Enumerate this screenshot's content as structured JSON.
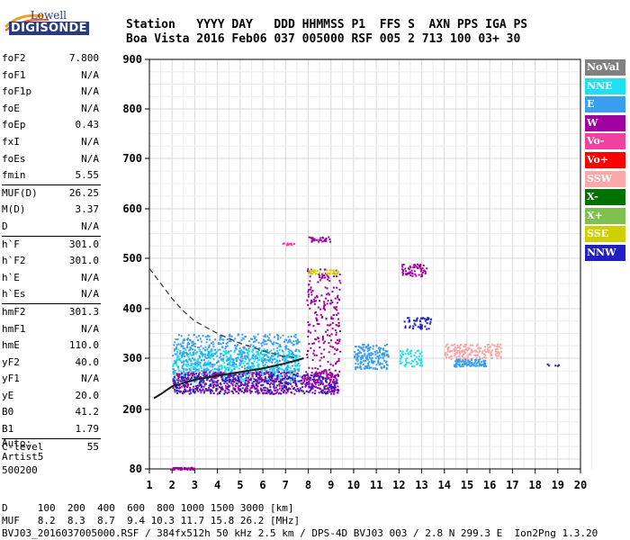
{
  "logo": {
    "top": "Lowell",
    "bottom": "DIGISONDE"
  },
  "header": {
    "row1": "Station   YYYY DAY   DDD HHMMSS P1  FFS S  AXN PPS IGA PS",
    "row2": "Boa Vista 2016 Feb06 037 005000 RSF 005 2 713 100 03+ 30"
  },
  "params": [
    [
      [
        "foF2",
        "7.800"
      ],
      [
        "foF1",
        "N/A"
      ],
      [
        "foF1p",
        "N/A"
      ],
      [
        "foE",
        "N/A"
      ],
      [
        "foEp",
        "0.43"
      ],
      [
        "fxI",
        "N/A"
      ],
      [
        "foEs",
        "N/A"
      ],
      [
        "fmin",
        "5.55"
      ]
    ],
    [
      [
        "MUF(D)",
        "26.25"
      ],
      [
        "M(D)",
        "3.37"
      ],
      [
        "D",
        "N/A"
      ]
    ],
    [
      [
        "h`F",
        "301.0"
      ],
      [
        "h`F2",
        "301.0"
      ],
      [
        "h`E",
        "N/A"
      ],
      [
        "h`Es",
        "N/A"
      ]
    ],
    [
      [
        "hmF2",
        "301.3"
      ],
      [
        "hmF1",
        "N/A"
      ],
      [
        "hmE",
        "110.0"
      ],
      [
        "yF2",
        "40.0"
      ],
      [
        "yF1",
        "N/A"
      ],
      [
        "yE",
        "20.0"
      ],
      [
        "B0",
        "41.2"
      ],
      [
        "B1",
        "1.79"
      ]
    ],
    [
      [
        "C-level",
        "55"
      ]
    ]
  ],
  "auto": {
    "line1": "Auto:",
    "line2": "Artist5",
    "line3": "500200"
  },
  "legend": [
    {
      "label": "NoVal",
      "color": "#808080"
    },
    {
      "label": "NNE",
      "color": "#1ee0f0"
    },
    {
      "label": "E",
      "color": "#3a9ef0"
    },
    {
      "label": "W",
      "color": "#a000a0"
    },
    {
      "label": "Vo-",
      "color": "#f040a0"
    },
    {
      "label": "Vo+",
      "color": "#ff0000"
    },
    {
      "label": "SSW",
      "color": "#f8a8a8"
    },
    {
      "label": "X-",
      "color": "#007000"
    },
    {
      "label": "X+",
      "color": "#80c050"
    },
    {
      "label": "SSE",
      "color": "#d0d000"
    },
    {
      "label": "NNW",
      "color": "#2020c0"
    }
  ],
  "footer": {
    "line1": "D     100  200  400  600  800 1000 1500 3000 [km]",
    "line2": "MUF   8.2  8.3  8.7  9.4 10.3 11.7 15.8 26.2 [MHz]",
    "line3": "BVJ03_2016037005000.RSF / 384fx512h 50 kHz 2.5 km / DPS-4D BVJ03 003 / 2.8 N 299.3 E  Ion2Png 1.3.20"
  },
  "chart_data": {
    "type": "scatter",
    "xlim": [
      1,
      20
    ],
    "ylim": [
      80,
      900
    ],
    "x_ticks": [
      1,
      2,
      3,
      4,
      5,
      6,
      7,
      8,
      9,
      10,
      11,
      12,
      13,
      14,
      15,
      16,
      17,
      18,
      19,
      20
    ],
    "y_ticks": [
      80,
      200,
      300,
      400,
      500,
      600,
      700,
      800,
      900
    ],
    "grid": true,
    "profile_curve": {
      "x": [
        1.0,
        1.5,
        2.0,
        2.5,
        3.0,
        4.0,
        5.0,
        6.0,
        6.8,
        7.4
      ],
      "y": [
        480,
        450,
        420,
        395,
        375,
        350,
        330,
        315,
        305,
        301
      ]
    },
    "trace_curve": {
      "x": [
        1.2,
        1.5,
        2.0,
        3.0,
        4.0,
        5.0,
        6.0,
        7.0,
        7.5,
        7.8
      ],
      "y": [
        222,
        230,
        245,
        258,
        266,
        273,
        280,
        290,
        296,
        300
      ]
    },
    "echo_clusters": [
      {
        "color": "#1ee0f0",
        "x": [
          2.0,
          7.6
        ],
        "y": [
          255,
          320
        ],
        "n": 700
      },
      {
        "color": "#3a9ef0",
        "x": [
          2.0,
          7.6
        ],
        "y": [
          270,
          350
        ],
        "n": 500
      },
      {
        "color": "#a000a0",
        "x": [
          2.0,
          9.3
        ],
        "y": [
          232,
          275
        ],
        "n": 600
      },
      {
        "color": "#2020c0",
        "x": [
          2.0,
          9.3
        ],
        "y": [
          232,
          270
        ],
        "n": 300
      },
      {
        "color": "#3a9ef0",
        "x": [
          10.0,
          11.5
        ],
        "y": [
          280,
          330
        ],
        "n": 180
      },
      {
        "color": "#a000a0",
        "x": [
          7.9,
          9.4
        ],
        "y": [
          250,
          480
        ],
        "n": 250
      },
      {
        "color": "#a000a0",
        "x": [
          12.1,
          13.2
        ],
        "y": [
          465,
          490
        ],
        "n": 60
      },
      {
        "color": "#2020c0",
        "x": [
          12.2,
          13.4
        ],
        "y": [
          360,
          385
        ],
        "n": 50
      },
      {
        "color": "#3a9ef0",
        "x": [
          14.4,
          15.8
        ],
        "y": [
          285,
          300
        ],
        "n": 100
      },
      {
        "color": "#f8a8a8",
        "x": [
          14.0,
          16.5
        ],
        "y": [
          300,
          330
        ],
        "n": 180
      },
      {
        "color": "#1ee0f0",
        "x": [
          12.0,
          13.0
        ],
        "y": [
          285,
          320
        ],
        "n": 60
      },
      {
        "color": "#d0d000",
        "x": [
          8.0,
          9.3
        ],
        "y": [
          470,
          478
        ],
        "n": 40
      },
      {
        "color": "#a000a0",
        "x": [
          8.0,
          9.0
        ],
        "y": [
          535,
          545
        ],
        "n": 30
      },
      {
        "color": "#a000a0",
        "x": [
          1.9,
          3.0
        ],
        "y": [
          80,
          84
        ],
        "n": 40
      },
      {
        "color": "#2020c0",
        "x": [
          18.5,
          19.1
        ],
        "y": [
          285,
          290
        ],
        "n": 5
      },
      {
        "color": "#f040a0",
        "x": [
          6.8,
          7.5
        ],
        "y": [
          528,
          532
        ],
        "n": 12
      }
    ]
  }
}
